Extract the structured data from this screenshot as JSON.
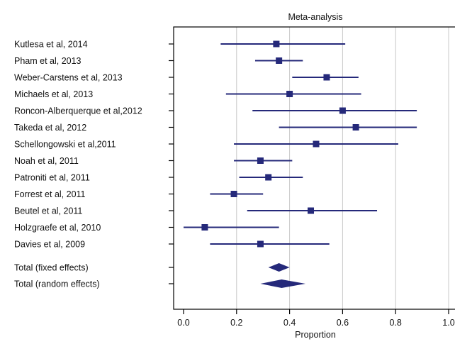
{
  "chart_data": {
    "type": "forest",
    "title": "Meta-analysis",
    "xlabel": "Proportion",
    "xlim": [
      0.0,
      1.0
    ],
    "xticks": [
      "0.0",
      "0.2",
      "0.4",
      "0.6",
      "0.8",
      "1.0"
    ],
    "grid": "vertical",
    "colors": {
      "marker": "#25297a",
      "axis": "#000000",
      "grid": "#c8c8c8"
    },
    "studies": [
      {
        "label": "Kutlesa et al, 2014",
        "estimate": 0.35,
        "lower": 0.14,
        "upper": 0.61
      },
      {
        "label": "Pham et al, 2013",
        "estimate": 0.36,
        "lower": 0.27,
        "upper": 0.45
      },
      {
        "label": "Weber-Carstens et al, 2013",
        "estimate": 0.54,
        "lower": 0.41,
        "upper": 0.66
      },
      {
        "label": "Michaels et al, 2013",
        "estimate": 0.4,
        "lower": 0.16,
        "upper": 0.67
      },
      {
        "label": "Roncon-Alberquerque et al,2012",
        "estimate": 0.6,
        "lower": 0.26,
        "upper": 0.88
      },
      {
        "label": "Takeda et al, 2012",
        "estimate": 0.65,
        "lower": 0.36,
        "upper": 0.88
      },
      {
        "label": "Schellongowski et al,2011",
        "estimate": 0.5,
        "lower": 0.19,
        "upper": 0.81
      },
      {
        "label": "Noah et al, 2011",
        "estimate": 0.29,
        "lower": 0.19,
        "upper": 0.41
      },
      {
        "label": "Patroniti et al, 2011",
        "estimate": 0.32,
        "lower": 0.21,
        "upper": 0.45
      },
      {
        "label": "Forrest et al, 2011",
        "estimate": 0.19,
        "lower": 0.1,
        "upper": 0.3
      },
      {
        "label": "Beutel et al, 2011",
        "estimate": 0.48,
        "lower": 0.24,
        "upper": 0.73
      },
      {
        "label": "Holzgraefe et al, 2010",
        "estimate": 0.08,
        "lower": 0.0,
        "upper": 0.36
      },
      {
        "label": "Davies et al, 2009",
        "estimate": 0.29,
        "lower": 0.1,
        "upper": 0.55
      }
    ],
    "totals": [
      {
        "label": "Total (fixed effects)",
        "estimate": 0.36,
        "lower": 0.32,
        "upper": 0.4
      },
      {
        "label": "Total (random effects)",
        "estimate": 0.37,
        "lower": 0.29,
        "upper": 0.46
      }
    ]
  }
}
